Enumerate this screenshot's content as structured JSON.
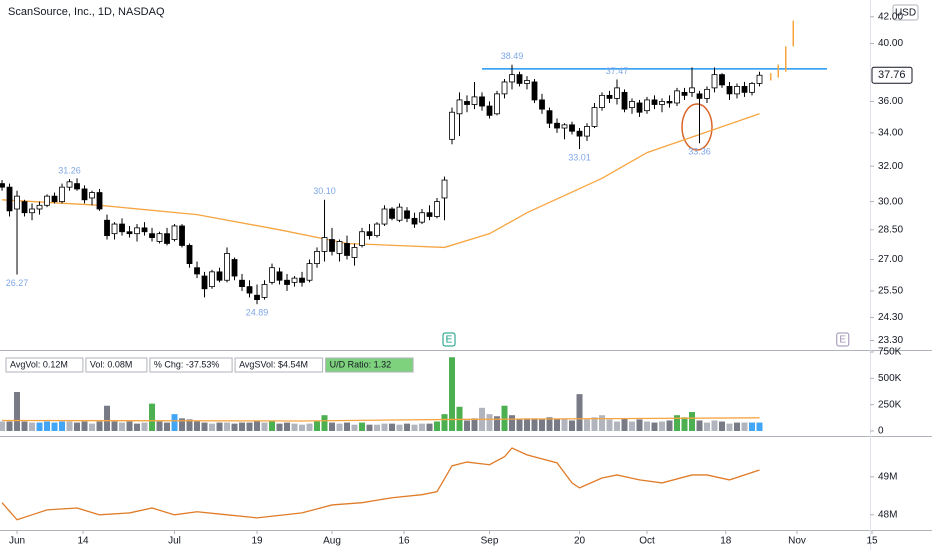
{
  "chart_data": {
    "type": "candlestick",
    "title": "ScanSource, Inc., 1D, NASDAQ",
    "currency": "USD",
    "log_scale": true,
    "xlim": [
      -0.27,
      124
    ],
    "xticks": [
      {
        "value": 2,
        "label": "Jun"
      },
      {
        "value": 10.8,
        "label": "14"
      },
      {
        "value": 23,
        "label": "Jul"
      },
      {
        "value": 34,
        "label": "19"
      },
      {
        "value": 44,
        "label": "Aug"
      },
      {
        "value": 53.6,
        "label": "16"
      },
      {
        "value": 65,
        "label": "Sep"
      },
      {
        "value": 77,
        "label": "20"
      },
      {
        "value": 86,
        "label": "Oct"
      },
      {
        "value": 96.5,
        "label": "18"
      },
      {
        "value": 106,
        "label": "Nov"
      },
      {
        "value": 116,
        "label": "15"
      }
    ],
    "ylim": [
      22.9,
      43.3
    ],
    "yticks": [
      {
        "value": 42,
        "label": "42.00"
      },
      {
        "value": 40,
        "label": "40.00"
      },
      {
        "value": 36,
        "label": "36.00"
      },
      {
        "value": 34,
        "label": "34.00"
      },
      {
        "value": 32,
        "label": "32.00"
      },
      {
        "value": 30,
        "label": "30.00"
      },
      {
        "value": 28.5,
        "label": "28.50"
      },
      {
        "value": 27,
        "label": "27.00"
      },
      {
        "value": 25.5,
        "label": "25.50"
      },
      {
        "value": 24.3,
        "label": "24.30"
      },
      {
        "value": 23.3,
        "label": "23.30"
      }
    ],
    "up_color": "#ffffff",
    "down_color": "#000000",
    "x": [
      0,
      1,
      2,
      3,
      4,
      5,
      6,
      7,
      8,
      9,
      10,
      11,
      12,
      13,
      14,
      15,
      16,
      17,
      18,
      19,
      20,
      21,
      22,
      23,
      24,
      25,
      26,
      27,
      28,
      29,
      30,
      31,
      32,
      33,
      34,
      35,
      36,
      37,
      38,
      39,
      40,
      41,
      42,
      43,
      44,
      45,
      46,
      47,
      48,
      49,
      50,
      51,
      52,
      53,
      54,
      55,
      56,
      57,
      58,
      59,
      60,
      61,
      62,
      63,
      64,
      65,
      66,
      67,
      68,
      69,
      70,
      71,
      72,
      73,
      74,
      75,
      76,
      77,
      78,
      79,
      80,
      81,
      82,
      83,
      84,
      85,
      86,
      87,
      88,
      89,
      90,
      91,
      92,
      93,
      94,
      95,
      96,
      97,
      98,
      99,
      100,
      101
    ],
    "candles": [
      [
        31.0,
        31.2,
        30.6,
        30.8
      ],
      [
        30.8,
        31.0,
        29.2,
        29.5
      ],
      [
        29.6,
        30.6,
        26.27,
        30.3
      ],
      [
        30.0,
        30.1,
        29.2,
        29.4
      ],
      [
        29.4,
        29.9,
        29.0,
        29.6
      ],
      [
        29.6,
        30.0,
        29.3,
        29.8
      ],
      [
        29.8,
        30.4,
        29.7,
        30.3
      ],
      [
        30.3,
        30.5,
        29.9,
        30.0
      ],
      [
        30.0,
        31.0,
        29.9,
        30.8
      ],
      [
        30.8,
        31.26,
        30.6,
        31.1
      ],
      [
        31.0,
        31.3,
        30.6,
        30.7
      ],
      [
        30.7,
        30.9,
        29.9,
        30.1
      ],
      [
        30.2,
        30.6,
        29.8,
        30.5
      ],
      [
        30.5,
        30.7,
        29.5,
        29.6
      ],
      [
        29.0,
        29.3,
        28.0,
        28.2
      ],
      [
        28.3,
        28.9,
        28.0,
        28.8
      ],
      [
        28.8,
        29.1,
        28.2,
        28.4
      ],
      [
        28.4,
        28.7,
        28.1,
        28.3
      ],
      [
        28.3,
        28.8,
        27.9,
        28.6
      ],
      [
        28.6,
        28.9,
        28.2,
        28.4
      ],
      [
        28.3,
        28.6,
        27.9,
        28.1
      ],
      [
        27.9,
        28.4,
        27.8,
        28.3
      ],
      [
        28.3,
        28.6,
        27.7,
        27.8
      ],
      [
        28.0,
        28.8,
        27.9,
        28.7
      ],
      [
        28.7,
        28.8,
        27.6,
        27.7
      ],
      [
        27.7,
        27.8,
        26.6,
        26.8
      ],
      [
        26.6,
        26.9,
        26.1,
        26.3
      ],
      [
        26.2,
        26.4,
        25.2,
        25.6
      ],
      [
        25.7,
        26.5,
        25.6,
        26.4
      ],
      [
        26.4,
        26.6,
        25.9,
        26.0
      ],
      [
        26.0,
        27.6,
        25.9,
        27.3
      ],
      [
        27.0,
        27.1,
        26.0,
        26.2
      ],
      [
        26.0,
        26.3,
        25.5,
        25.7
      ],
      [
        25.7,
        26.0,
        25.2,
        25.4
      ],
      [
        25.3,
        25.8,
        24.89,
        25.1
      ],
      [
        25.2,
        26.0,
        25.1,
        25.8
      ],
      [
        25.9,
        26.8,
        25.8,
        26.6
      ],
      [
        26.4,
        26.6,
        25.8,
        26.0
      ],
      [
        26.0,
        26.3,
        25.5,
        25.8
      ],
      [
        25.9,
        26.2,
        25.7,
        26.1
      ],
      [
        26.1,
        26.4,
        25.7,
        25.9
      ],
      [
        26.0,
        27.0,
        25.9,
        26.8
      ],
      [
        26.8,
        27.6,
        26.6,
        27.4
      ],
      [
        27.4,
        30.1,
        26.9,
        28.1
      ],
      [
        28.0,
        28.6,
        27.2,
        27.4
      ],
      [
        27.3,
        28.0,
        26.9,
        27.9
      ],
      [
        27.8,
        28.2,
        27.0,
        27.2
      ],
      [
        27.1,
        27.8,
        26.7,
        27.6
      ],
      [
        27.7,
        28.6,
        27.6,
        28.4
      ],
      [
        28.4,
        28.8,
        28.0,
        28.2
      ],
      [
        28.2,
        28.9,
        28.1,
        28.8
      ],
      [
        28.8,
        29.8,
        28.7,
        29.6
      ],
      [
        29.6,
        29.7,
        29.0,
        29.1
      ],
      [
        29.0,
        29.9,
        28.9,
        29.7
      ],
      [
        29.5,
        29.7,
        28.9,
        29.1
      ],
      [
        29.1,
        29.4,
        28.6,
        28.8
      ],
      [
        28.9,
        29.6,
        28.8,
        29.4
      ],
      [
        29.4,
        29.8,
        29.0,
        29.2
      ],
      [
        29.2,
        30.2,
        29.1,
        30.0
      ],
      [
        30.2,
        31.4,
        29.0,
        31.2
      ],
      [
        33.6,
        35.6,
        33.3,
        35.3
      ],
      [
        35.2,
        36.6,
        33.8,
        36.1
      ],
      [
        36.0,
        36.4,
        35.3,
        35.8
      ],
      [
        35.8,
        37.3,
        35.5,
        36.3
      ],
      [
        36.3,
        36.6,
        35.4,
        35.7
      ],
      [
        35.7,
        36.0,
        34.9,
        35.1
      ],
      [
        35.2,
        36.7,
        35.1,
        36.5
      ],
      [
        36.5,
        37.5,
        36.2,
        37.3
      ],
      [
        37.3,
        38.49,
        36.8,
        37.8
      ],
      [
        37.8,
        38.0,
        37.0,
        37.2
      ],
      [
        37.2,
        37.7,
        36.8,
        37.4
      ],
      [
        37.3,
        37.5,
        35.9,
        36.1
      ],
      [
        36.1,
        36.5,
        35.2,
        35.5
      ],
      [
        35.4,
        35.6,
        34.3,
        34.6
      ],
      [
        34.6,
        34.9,
        34.0,
        34.3
      ],
      [
        34.3,
        34.6,
        33.6,
        34.5
      ],
      [
        34.5,
        34.7,
        33.9,
        34.1
      ],
      [
        34.1,
        34.3,
        33.01,
        33.8
      ],
      [
        33.8,
        34.6,
        33.5,
        34.4
      ],
      [
        34.4,
        35.9,
        34.3,
        35.6
      ],
      [
        35.6,
        36.6,
        35.4,
        36.4
      ],
      [
        36.4,
        36.7,
        35.9,
        36.2
      ],
      [
        36.2,
        37.47,
        35.8,
        36.9
      ],
      [
        36.6,
        36.8,
        35.3,
        35.5
      ],
      [
        35.6,
        36.2,
        35.2,
        36.0
      ],
      [
        35.9,
        36.1,
        35.0,
        35.3
      ],
      [
        35.4,
        36.3,
        35.2,
        36.1
      ],
      [
        36.1,
        36.4,
        35.5,
        35.8
      ],
      [
        35.8,
        36.2,
        35.3,
        36.0
      ],
      [
        36.0,
        36.4,
        35.6,
        35.9
      ],
      [
        35.9,
        36.9,
        35.7,
        36.7
      ],
      [
        36.6,
        36.9,
        36.1,
        36.4
      ],
      [
        36.6,
        38.3,
        36.3,
        36.9
      ],
      [
        36.5,
        36.7,
        33.36,
        36.2
      ],
      [
        36.2,
        37.0,
        35.9,
        36.8
      ],
      [
        36.9,
        38.3,
        36.6,
        37.8
      ],
      [
        37.8,
        37.9,
        36.9,
        37.1
      ],
      [
        37.0,
        37.3,
        36.1,
        36.5
      ],
      [
        36.5,
        37.2,
        36.2,
        37.0
      ],
      [
        37.0,
        37.3,
        36.3,
        36.6
      ],
      [
        36.6,
        37.3,
        36.4,
        37.2
      ],
      [
        37.2,
        38.0,
        37.0,
        37.76
      ]
    ],
    "last_price": {
      "value": 37.76,
      "label": "37.76"
    },
    "resistance": {
      "value": 38.2,
      "x": [
        64,
        110
      ],
      "color": "#2196f3"
    },
    "moving_average": {
      "color": "#f7a541",
      "x": [
        0,
        13,
        26,
        37,
        46,
        59,
        65,
        70,
        80,
        86,
        93,
        101
      ],
      "values": [
        30.1,
        29.8,
        29.3,
        28.5,
        27.8,
        27.6,
        28.3,
        29.4,
        31.3,
        32.8,
        33.9,
        35.2
      ]
    },
    "projection": {
      "color": "#f7a541",
      "x": [
        102.5,
        103.5,
        104.5,
        105.5
      ],
      "ranges": [
        [
          37.4,
          37.9
        ],
        [
          37.6,
          38.5
        ],
        [
          38.0,
          39.8
        ],
        [
          39.8,
          41.7
        ]
      ]
    },
    "price_labels": [
      {
        "x": 2,
        "value": 26.27,
        "label": "26.27",
        "position": "below"
      },
      {
        "x": 9,
        "value": 31.26,
        "label": "31.26",
        "position": "above"
      },
      {
        "x": 34,
        "value": 24.89,
        "label": "24.89",
        "position": "below"
      },
      {
        "x": 43,
        "value": 30.1,
        "label": "30.10",
        "position": "above"
      },
      {
        "x": 68,
        "value": 38.49,
        "label": "38.49",
        "position": "above"
      },
      {
        "x": 77,
        "value": 33.01,
        "label": "33.01",
        "position": "below"
      },
      {
        "x": 82,
        "value": 37.47,
        "label": "37.47",
        "position": "above"
      },
      {
        "x": 93,
        "value": 33.36,
        "label": "33.36",
        "position": "below"
      }
    ],
    "earnings": [
      {
        "x": 59.6,
        "label": "E",
        "color": "#089981"
      },
      {
        "x": 112.1,
        "label": "E",
        "color": "#9c8fb5"
      }
    ],
    "volume": {
      "ylim": [
        0,
        750
      ],
      "yticks": [
        {
          "value": 750,
          "label": "750K"
        },
        {
          "value": 500,
          "label": "500K"
        },
        {
          "value": 250,
          "label": "250K"
        },
        0
      ],
      "values": [
        90,
        90,
        370,
        90,
        80,
        80,
        90,
        80,
        90,
        90,
        80,
        90,
        70,
        90,
        240,
        90,
        80,
        90,
        70,
        80,
        260,
        90,
        80,
        160,
        120,
        110,
        90,
        80,
        70,
        80,
        80,
        70,
        80,
        80,
        100,
        80,
        100,
        70,
        80,
        70,
        60,
        70,
        90,
        150,
        80,
        70,
        80,
        60,
        80,
        60,
        60,
        70,
        70,
        60,
        70,
        60,
        70,
        70,
        90,
        160,
        700,
        230,
        100,
        120,
        220,
        160,
        140,
        240,
        150,
        110,
        120,
        120,
        110,
        130,
        110,
        110,
        100,
        350,
        110,
        130,
        150,
        110,
        90,
        120,
        90,
        110,
        90,
        80,
        90,
        100,
        150,
        130,
        180,
        100,
        80,
        100,
        90,
        70,
        80,
        80,
        80,
        80
      ],
      "colors": [
        "#b2b5be",
        "#787b86",
        "#787b86",
        "#787b86",
        "#b2b5be",
        "#42a5f5",
        "#42a5f5",
        "#42a5f5",
        "#42a5f5",
        "#b2b5be",
        "#787b86",
        "#787b86",
        "#b2b5be",
        "#787b86",
        "#787b86",
        "#787b86",
        "#b2b5be",
        "#787b86",
        "#787b86",
        "#b2b5be",
        "#4caf50",
        "#787b86",
        "#787b86",
        "#42a5f5",
        "#787b86",
        "#787b86",
        "#787b86",
        "#787b86",
        "#b2b5be",
        "#787b86",
        "#b2b5be",
        "#787b86",
        "#787b86",
        "#787b86",
        "#787b86",
        "#b2b5be",
        "#4caf50",
        "#787b86",
        "#787b86",
        "#b2b5be",
        "#b2b5be",
        "#b2b5be",
        "#4caf50",
        "#4caf50",
        "#787b86",
        "#b2b5be",
        "#787b86",
        "#b2b5be",
        "#4caf50",
        "#787b86",
        "#b2b5be",
        "#b2b5be",
        "#787b86",
        "#b2b5be",
        "#787b86",
        "#b2b5be",
        "#b2b5be",
        "#787b86",
        "#4caf50",
        "#4caf50",
        "#4caf50",
        "#4caf50",
        "#787b86",
        "#787b86",
        "#b2b5be",
        "#b2b5be",
        "#787b86",
        "#4caf50",
        "#787b86",
        "#787b86",
        "#787b86",
        "#787b86",
        "#787b86",
        "#787b86",
        "#787b86",
        "#b2b5be",
        "#787b86",
        "#787b86",
        "#b2b5be",
        "#b2b5be",
        "#b2b5be",
        "#b2b5be",
        "#b2b5be",
        "#787b86",
        "#b2b5be",
        "#787b86",
        "#b2b5be",
        "#787b86",
        "#b2b5be",
        "#787b86",
        "#4caf50",
        "#4caf50",
        "#4caf50",
        "#787b86",
        "#b2b5be",
        "#b2b5be",
        "#787b86",
        "#b2b5be",
        "#787b86",
        "#b2b5be",
        "#42a5f5",
        "#42a5f5"
      ],
      "average": {
        "color": "#f7a541",
        "x": [
          0,
          40,
          60,
          101
        ],
        "values": [
          100,
          95,
          110,
          125
        ]
      },
      "stats": [
        {
          "text": "AvgVol: 0.12M",
          "background": "#ffffff"
        },
        {
          "text": "Vol: 0.08M",
          "background": "#ffffff"
        },
        {
          "text": "% Chg: -37.53%",
          "background": "#ffffff"
        },
        {
          "text": "AvgSVol: $4.54M",
          "background": "#ffffff"
        },
        {
          "text": "U/D Ratio: 1.32",
          "background": "#7ed27e"
        }
      ]
    },
    "indicator": {
      "ylim": [
        47.6,
        50.05
      ],
      "yticks": [
        {
          "value": 49,
          "label": "49M"
        },
        {
          "value": 48,
          "label": "48M"
        }
      ],
      "color": "#e07b28",
      "x": [
        0,
        2,
        4,
        6,
        10,
        13,
        17,
        20,
        23,
        26,
        30,
        34,
        40,
        44,
        48,
        52,
        56,
        58,
        60,
        62,
        65,
        67,
        68,
        70,
        74,
        76,
        77,
        80,
        82,
        85,
        88,
        92,
        94,
        97,
        101
      ],
      "values": [
        48.32,
        47.87,
        48.0,
        48.13,
        48.18,
        48.0,
        48.05,
        48.18,
        48.0,
        48.08,
        48.0,
        47.92,
        48.05,
        48.26,
        48.32,
        48.45,
        48.53,
        48.61,
        49.29,
        49.39,
        49.32,
        49.53,
        49.76,
        49.58,
        49.37,
        48.84,
        48.71,
        48.97,
        49.05,
        48.92,
        48.84,
        49.05,
        49.05,
        48.92,
        49.18
      ]
    }
  }
}
